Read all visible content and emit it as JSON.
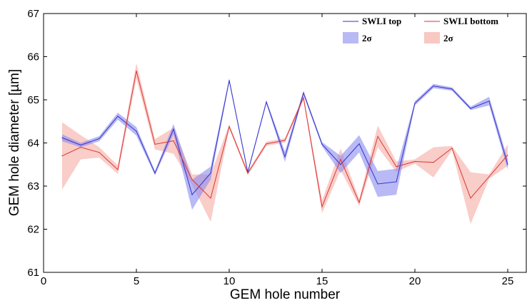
{
  "colors": {
    "top_line": "#3333cc",
    "top_band": "#8a8aee",
    "bottom_line": "#dd3333",
    "bottom_band": "#f4a49a",
    "axis": "#000000",
    "background": "#ffffff"
  },
  "chart_data": {
    "type": "line",
    "title": "",
    "xlabel": "GEM hole number",
    "ylabel": "GEM hole diameter [µm]",
    "xlim": [
      0,
      26
    ],
    "ylim": [
      61,
      67
    ],
    "xticks": [
      0,
      5,
      10,
      15,
      20,
      25
    ],
    "yticks": [
      61,
      62,
      63,
      64,
      65,
      66,
      67
    ],
    "grid": false,
    "legend_position": "top-right",
    "x": [
      1,
      2,
      3,
      4,
      5,
      6,
      7,
      8,
      9,
      10,
      11,
      12,
      13,
      14,
      15,
      16,
      17,
      18,
      19,
      20,
      21,
      22,
      23,
      24,
      25
    ],
    "series": [
      {
        "name": "SWLI top",
        "band_name": "2σ",
        "color_key": "top",
        "values": [
          64.12,
          63.95,
          64.1,
          64.62,
          64.27,
          63.3,
          64.32,
          62.8,
          63.3,
          65.45,
          63.32,
          64.95,
          63.68,
          65.16,
          63.97,
          63.5,
          63.98,
          63.05,
          63.1,
          64.92,
          65.32,
          65.25,
          64.8,
          64.97,
          63.5
        ],
        "band": [
          0.08,
          0.05,
          0.06,
          0.08,
          0.1,
          0.05,
          0.12,
          0.35,
          0.15,
          0.05,
          0.04,
          0.04,
          0.12,
          0.05,
          0.05,
          0.2,
          0.2,
          0.3,
          0.3,
          0.05,
          0.05,
          0.04,
          0.04,
          0.1,
          0.12
        ]
      },
      {
        "name": "SWLI bottom",
        "band_name": "2σ",
        "color_key": "bottom",
        "values": [
          63.7,
          63.9,
          63.78,
          63.38,
          65.67,
          63.97,
          64.05,
          63.15,
          62.72,
          64.38,
          63.3,
          63.98,
          64.06,
          65.05,
          62.52,
          63.62,
          62.62,
          64.15,
          63.45,
          63.57,
          63.55,
          63.88,
          62.72,
          63.22,
          63.72
        ],
        "band": [
          0.78,
          0.28,
          0.12,
          0.1,
          0.18,
          0.12,
          0.3,
          0.12,
          0.55,
          0.05,
          0.05,
          0.05,
          0.05,
          0.06,
          0.15,
          0.25,
          0.08,
          0.25,
          0.12,
          0.05,
          0.35,
          0.05,
          0.6,
          0.05,
          0.25
        ]
      }
    ]
  }
}
